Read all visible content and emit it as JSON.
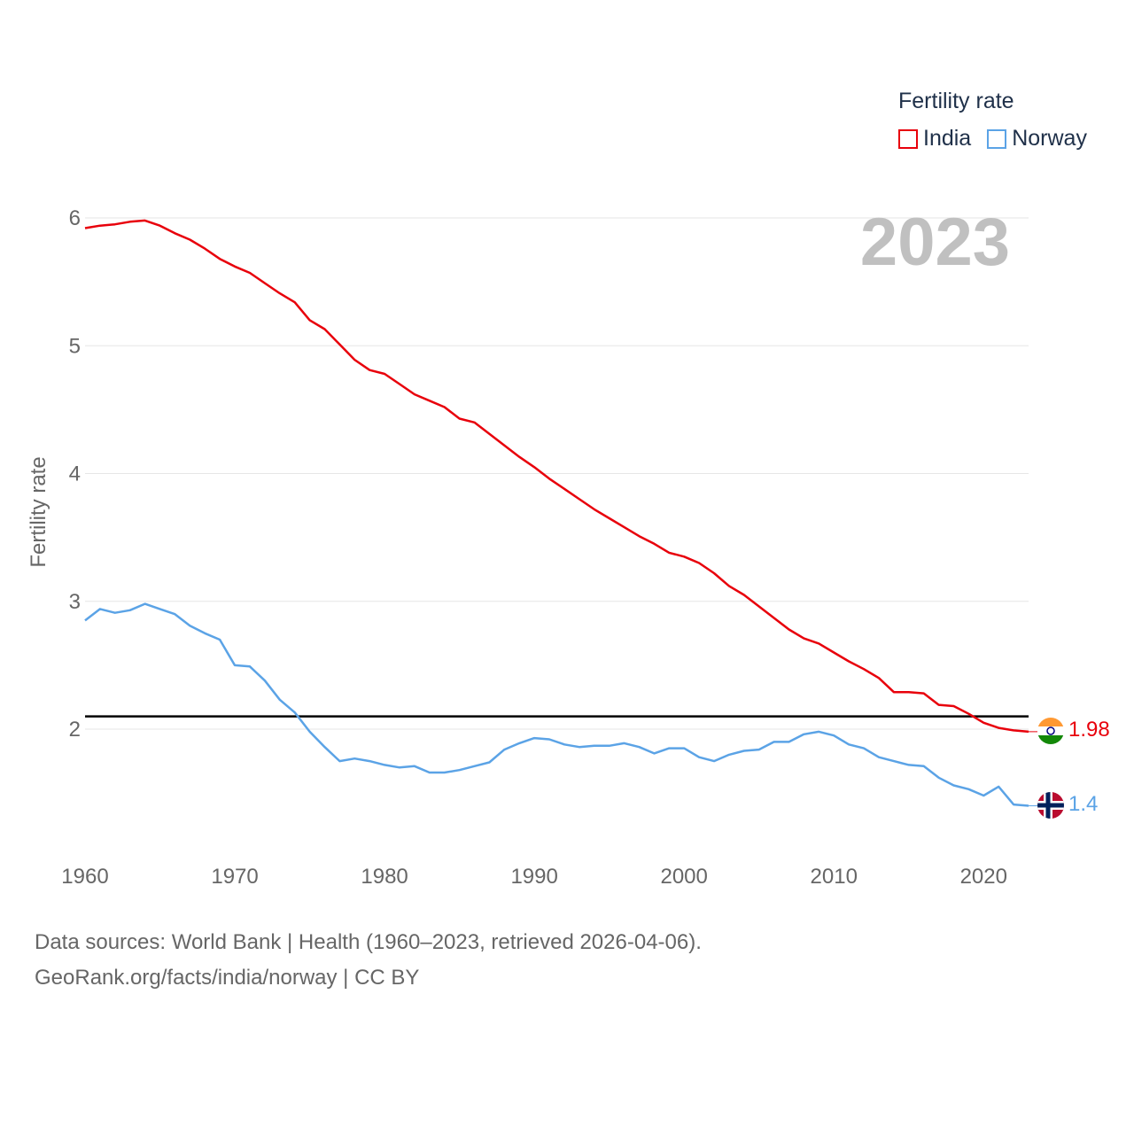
{
  "legend": {
    "title": "Fertility rate"
  },
  "footer": {
    "line1": "Data sources: World Bank | Health (1960–2023, retrieved 2026-04-06).",
    "line2": "GeoRank.org/facts/india/norway | CC BY"
  },
  "chart_data": {
    "type": "line",
    "title": "",
    "year_label": "2023",
    "ylabel": "Fertility rate",
    "xlabel": "",
    "xlim": [
      1960,
      2023
    ],
    "ylim": [
      1.0,
      6.0
    ],
    "yticks": [
      2,
      3,
      4,
      5,
      6
    ],
    "xticks": [
      1960,
      1970,
      1980,
      1990,
      2000,
      2010,
      2020
    ],
    "reference_line": 2.1,
    "x": [
      1960,
      1961,
      1962,
      1963,
      1964,
      1965,
      1966,
      1967,
      1968,
      1969,
      1970,
      1971,
      1972,
      1973,
      1974,
      1975,
      1976,
      1977,
      1978,
      1979,
      1980,
      1981,
      1982,
      1983,
      1984,
      1985,
      1986,
      1987,
      1988,
      1989,
      1990,
      1991,
      1992,
      1993,
      1994,
      1995,
      1996,
      1997,
      1998,
      1999,
      2000,
      2001,
      2002,
      2003,
      2004,
      2005,
      2006,
      2007,
      2008,
      2009,
      2010,
      2011,
      2012,
      2013,
      2014,
      2015,
      2016,
      2017,
      2018,
      2019,
      2020,
      2021,
      2022,
      2023
    ],
    "series": [
      {
        "name": "India",
        "color": "#e8000b",
        "end_label": "1.98",
        "values": [
          5.92,
          5.94,
          5.95,
          5.97,
          5.98,
          5.94,
          5.88,
          5.83,
          5.76,
          5.68,
          5.62,
          5.57,
          5.49,
          5.41,
          5.34,
          5.2,
          5.13,
          5.01,
          4.89,
          4.81,
          4.78,
          4.7,
          4.62,
          4.57,
          4.52,
          4.43,
          4.4,
          4.31,
          4.22,
          4.13,
          4.05,
          3.96,
          3.88,
          3.8,
          3.72,
          3.65,
          3.58,
          3.51,
          3.45,
          3.38,
          3.35,
          3.3,
          3.22,
          3.12,
          3.05,
          2.96,
          2.87,
          2.78,
          2.71,
          2.67,
          2.6,
          2.53,
          2.47,
          2.4,
          2.29,
          2.29,
          2.28,
          2.19,
          2.18,
          2.12,
          2.05,
          2.01,
          1.99,
          1.98
        ]
      },
      {
        "name": "Norway",
        "color": "#5ba3e6",
        "end_label": "1.4",
        "values": [
          2.85,
          2.94,
          2.91,
          2.93,
          2.98,
          2.94,
          2.9,
          2.81,
          2.75,
          2.7,
          2.5,
          2.49,
          2.38,
          2.23,
          2.13,
          1.98,
          1.86,
          1.75,
          1.77,
          1.75,
          1.72,
          1.7,
          1.71,
          1.66,
          1.66,
          1.68,
          1.71,
          1.74,
          1.84,
          1.89,
          1.93,
          1.92,
          1.88,
          1.86,
          1.87,
          1.87,
          1.89,
          1.86,
          1.81,
          1.85,
          1.85,
          1.78,
          1.75,
          1.8,
          1.83,
          1.84,
          1.9,
          1.9,
          1.96,
          1.98,
          1.95,
          1.88,
          1.85,
          1.78,
          1.75,
          1.72,
          1.71,
          1.62,
          1.56,
          1.53,
          1.48,
          1.55,
          1.41,
          1.4
        ]
      }
    ]
  }
}
